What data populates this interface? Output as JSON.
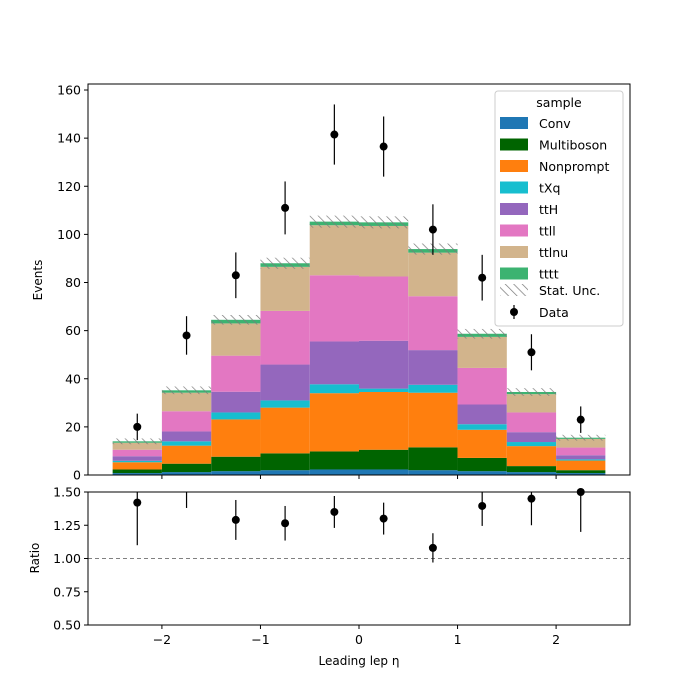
{
  "chart_data": [
    {
      "type": "bar",
      "stacked": true,
      "ylabel": "Events",
      "ylim": [
        0,
        162.5
      ],
      "yticks": [
        0,
        20,
        40,
        60,
        80,
        100,
        120,
        140,
        160
      ],
      "bin_edges": [
        -2.5,
        -2.0,
        -1.5,
        -1.0,
        -0.5,
        0.0,
        0.5,
        1.0,
        1.5,
        2.0,
        2.5
      ],
      "series": [
        {
          "name": "Conv",
          "color": "#1f77b4",
          "values": [
            0.8,
            1.2,
            1.6,
            2.0,
            2.3,
            2.3,
            2.0,
            1.6,
            1.2,
            0.8
          ]
        },
        {
          "name": "Multiboson",
          "color": "#006400",
          "values": [
            1.5,
            3.5,
            6.0,
            7.0,
            7.5,
            8.2,
            9.5,
            5.5,
            2.5,
            1.2
          ]
        },
        {
          "name": "Nonprompt",
          "color": "#ff7f0e",
          "values": [
            3.0,
            7.5,
            15.5,
            19.0,
            24.2,
            24.0,
            22.7,
            11.7,
            8.3,
            4.0
          ]
        },
        {
          "name": "tXq",
          "color": "#17becf",
          "values": [
            0.6,
            1.8,
            2.9,
            3.0,
            3.7,
            1.4,
            3.3,
            2.3,
            1.7,
            0.5
          ]
        },
        {
          "name": "ttH",
          "color": "#9467bd",
          "values": [
            1.9,
            4.1,
            8.6,
            14.9,
            17.8,
            19.9,
            14.4,
            8.2,
            4.1,
            1.7
          ]
        },
        {
          "name": "ttll",
          "color": "#e377c2",
          "values": [
            2.7,
            8.4,
            15.0,
            22.3,
            27.5,
            26.7,
            22.4,
            15.2,
            8.2,
            3.2
          ]
        },
        {
          "name": "ttlnu",
          "color": "#d2b48c",
          "values": [
            2.9,
            7.7,
            13.4,
            18.3,
            20.8,
            21.0,
            18.1,
            12.9,
            7.6,
            3.6
          ]
        },
        {
          "name": "tttt",
          "color": "#3cb371",
          "values": [
            0.6,
            1.0,
            1.5,
            1.5,
            1.5,
            1.5,
            1.5,
            1.3,
            0.9,
            0.5
          ]
        }
      ],
      "stat_unc": [
        1.2,
        1.6,
        2.0,
        2.3,
        2.5,
        2.5,
        2.3,
        2.0,
        1.6,
        1.2
      ],
      "data_points": {
        "name": "Data",
        "x": [
          -2.25,
          -1.75,
          -1.25,
          -0.75,
          -0.25,
          0.25,
          0.75,
          1.25,
          1.75,
          2.25
        ],
        "y": [
          20,
          58,
          83,
          111,
          141.5,
          136.5,
          102,
          82,
          51,
          23
        ],
        "err": [
          5.5,
          8,
          9.5,
          11,
          12.5,
          12.5,
          10.5,
          9.5,
          7.5,
          5.5
        ]
      },
      "legend": {
        "title": "sample",
        "placement": "upper-right",
        "stat_label": "Stat. Unc.",
        "data_label": "Data"
      }
    },
    {
      "type": "scatter",
      "ylabel": "Ratio",
      "xlabel": "Leading lep η",
      "ylim": [
        0.5,
        1.5
      ],
      "xlim": [
        -2.75,
        2.75
      ],
      "yticks": [
        "0.50",
        "0.75",
        "1.00",
        "1.25",
        "1.50"
      ],
      "xticks": [
        "−2",
        "−1",
        "0",
        "1",
        "2"
      ],
      "xtick_values": [
        -2,
        -1,
        0,
        1,
        2
      ],
      "reference_line": 1.0,
      "x": [
        -2.25,
        -1.75,
        -1.25,
        -0.75,
        -0.25,
        0.25,
        0.75,
        1.25,
        1.75,
        2.25
      ],
      "y": [
        1.42,
        1.6,
        1.29,
        1.265,
        1.35,
        1.3,
        1.08,
        1.395,
        1.45,
        1.51
      ],
      "err": [
        0.32,
        0.22,
        0.15,
        0.13,
        0.12,
        0.12,
        0.11,
        0.15,
        0.2,
        0.31
      ]
    }
  ]
}
